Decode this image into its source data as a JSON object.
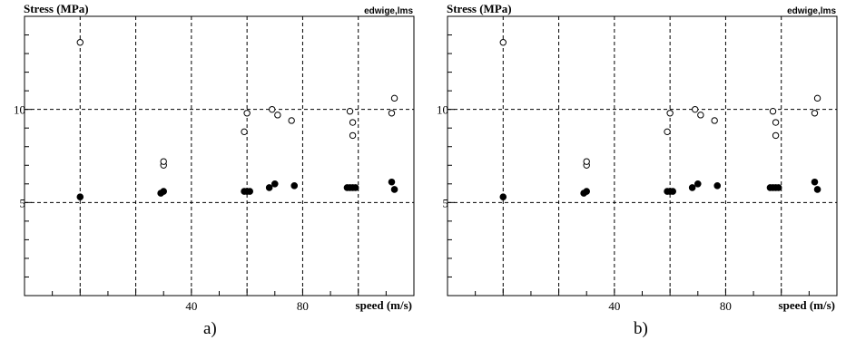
{
  "chart_data": [
    {
      "id": "a",
      "type": "scatter",
      "caption": "a)",
      "ylabel": "Stress (MPa)",
      "xlabel": "speed (m/s)",
      "corner_label": "edwige,lms",
      "xlim": [
        -20,
        120
      ],
      "ylim": [
        0,
        15
      ],
      "x_gridlines": [
        0,
        20,
        40,
        60,
        80,
        100
      ],
      "y_gridlines": [
        5,
        10
      ],
      "x_ticks_labeled": [
        40,
        80
      ],
      "y_ticks_labeled": [
        5,
        10
      ],
      "grid": true,
      "series": [
        {
          "marker": "open-circle",
          "points": [
            [
              0,
              13.6
            ],
            [
              30,
              7.0
            ],
            [
              30,
              7.2
            ],
            [
              59,
              8.8
            ],
            [
              60,
              9.8
            ],
            [
              69,
              10.0
            ],
            [
              71,
              9.7
            ],
            [
              76,
              9.4
            ],
            [
              97,
              9.9
            ],
            [
              98,
              8.6
            ],
            [
              98,
              9.3
            ],
            [
              112,
              9.8
            ],
            [
              113,
              10.6
            ]
          ]
        },
        {
          "marker": "filled-circle",
          "points": [
            [
              0,
              5.3
            ],
            [
              29,
              5.5
            ],
            [
              30,
              5.6
            ],
            [
              59,
              5.6
            ],
            [
              60,
              5.6
            ],
            [
              61,
              5.6
            ],
            [
              68,
              5.8
            ],
            [
              70,
              6.0
            ],
            [
              77,
              5.9
            ],
            [
              96,
              5.8
            ],
            [
              97,
              5.8
            ],
            [
              98,
              5.8
            ],
            [
              99,
              5.8
            ],
            [
              112,
              6.1
            ],
            [
              113,
              5.7
            ]
          ]
        }
      ]
    },
    {
      "id": "b",
      "type": "scatter",
      "caption": "b)",
      "ylabel": "Stress (MPa)",
      "xlabel": "speed (m/s)",
      "corner_label": "edwige,lms",
      "xlim": [
        -20,
        120
      ],
      "ylim": [
        0,
        15
      ],
      "x_gridlines": [
        0,
        20,
        40,
        60,
        80,
        100
      ],
      "y_gridlines": [
        5,
        10
      ],
      "x_ticks_labeled": [
        40,
        80
      ],
      "y_ticks_labeled": [
        5,
        10
      ],
      "grid": true,
      "series": [
        {
          "marker": "open-circle",
          "points": [
            [
              0,
              13.6
            ],
            [
              30,
              7.0
            ],
            [
              30,
              7.2
            ],
            [
              59,
              8.8
            ],
            [
              60,
              9.8
            ],
            [
              69,
              10.0
            ],
            [
              71,
              9.7
            ],
            [
              76,
              9.4
            ],
            [
              97,
              9.9
            ],
            [
              98,
              8.6
            ],
            [
              98,
              9.3
            ],
            [
              112,
              9.8
            ],
            [
              113,
              10.6
            ]
          ]
        },
        {
          "marker": "filled-circle",
          "points": [
            [
              0,
              5.3
            ],
            [
              29,
              5.5
            ],
            [
              30,
              5.6
            ],
            [
              59,
              5.6
            ],
            [
              60,
              5.6
            ],
            [
              61,
              5.6
            ],
            [
              68,
              5.8
            ],
            [
              70,
              6.0
            ],
            [
              77,
              5.9
            ],
            [
              96,
              5.8
            ],
            [
              97,
              5.8
            ],
            [
              98,
              5.8
            ],
            [
              99,
              5.8
            ],
            [
              112,
              6.1
            ],
            [
              113,
              5.7
            ]
          ]
        }
      ]
    }
  ]
}
